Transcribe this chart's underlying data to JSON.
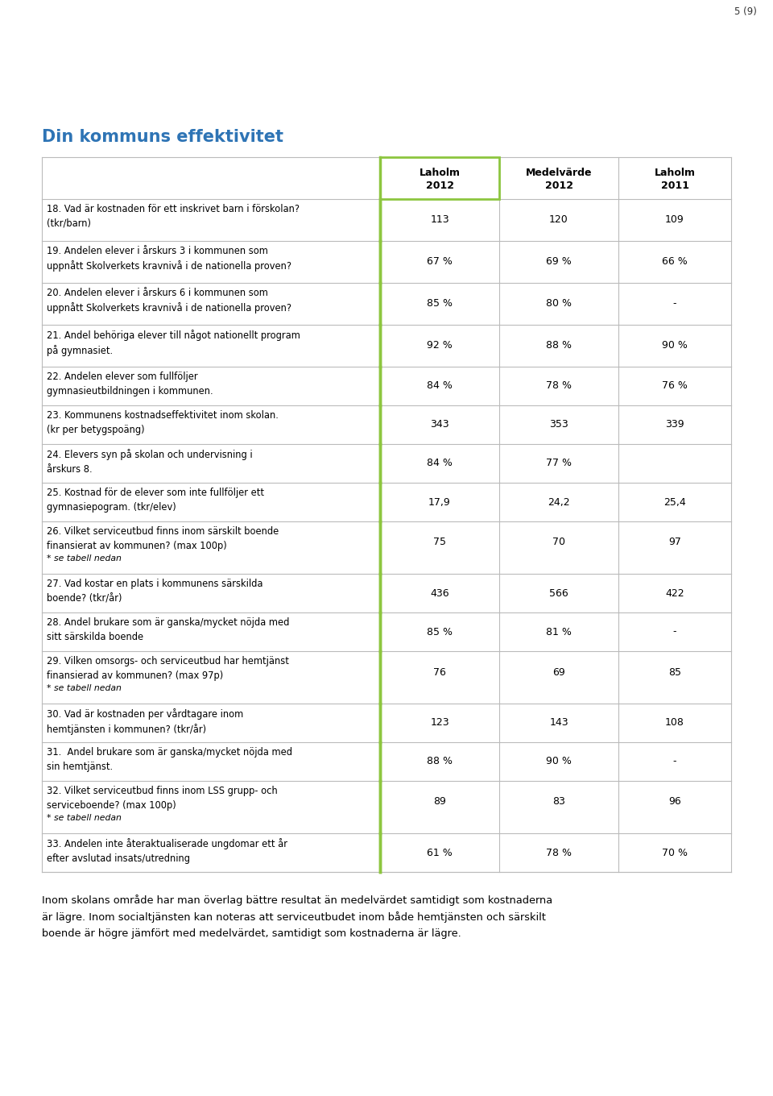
{
  "page_num": "5 (9)",
  "title": "Din kommuns effektivitet",
  "title_color": "#2E74B5",
  "col_headers": [
    [
      "Laholm",
      "2012"
    ],
    [
      "Medelvärde",
      "2012"
    ],
    [
      "Laholm",
      "2011"
    ]
  ],
  "green_color": "#8DC63F",
  "rows": [
    {
      "label": "18. Vad är kostnaden för ett inskrivet barn i förskolan?\n(tkr/barn)",
      "vals": [
        "113",
        "120",
        "109"
      ],
      "has_note": false
    },
    {
      "label": "19. Andelen elever i årskurs 3 i kommunen som\nuppnått Skolverkets kravnivå i de nationella proven?",
      "vals": [
        "67 %",
        "69 %",
        "66 %"
      ],
      "has_note": false
    },
    {
      "label": "20. Andelen elever i årskurs 6 i kommunen som\nuppnått Skolverkets kravnivå i de nationella proven?",
      "vals": [
        "85 %",
        "80 %",
        "-"
      ],
      "has_note": false
    },
    {
      "label": "21. Andel behöriga elever till något nationellt program\npå gymnasiet.",
      "vals": [
        "92 %",
        "88 %",
        "90 %"
      ],
      "has_note": false
    },
    {
      "label": "22. Andelen elever som fullföljer\ngymnasieutbildningen i kommunen.",
      "vals": [
        "84 %",
        "78 %",
        "76 %"
      ],
      "has_note": false
    },
    {
      "label": "23. Kommunens kostnadseffektivitet inom skolan.\n(kr per betygspoäng)",
      "vals": [
        "343",
        "353",
        "339"
      ],
      "has_note": false
    },
    {
      "label": "24. Elevers syn på skolan och undervisning i\nårskurs 8.",
      "vals": [
        "84 %",
        "77 %",
        ""
      ],
      "has_note": false
    },
    {
      "label": "25. Kostnad för de elever som inte fullföljer ett\ngymnasiepogram. (tkr/elev)",
      "vals": [
        "17,9",
        "24,2",
        "25,4"
      ],
      "has_note": false
    },
    {
      "label": "26. Vilket serviceutbud finns inom särskilt boende\nfinansierat av kommunen? (max 100p)",
      "vals": [
        "75",
        "70",
        "97"
      ],
      "has_note": true
    },
    {
      "label": "27. Vad kostar en plats i kommunens särskilda\nboende? (tkr/år)",
      "vals": [
        "436",
        "566",
        "422"
      ],
      "has_note": false
    },
    {
      "label": "28. Andel brukare som är ganska/mycket nöjda med\nsitt särskilda boende",
      "vals": [
        "85 %",
        "81 %",
        "-"
      ],
      "has_note": false
    },
    {
      "label": "29. Vilken omsorgs- och serviceutbud har hemtjänst\nfinansierad av kommunen? (max 97p)",
      "vals": [
        "76",
        "69",
        "85"
      ],
      "has_note": true
    },
    {
      "label": "30. Vad är kostnaden per vårdtagare inom\nhemtjänsten i kommunen? (tkr/år)",
      "vals": [
        "123",
        "143",
        "108"
      ],
      "has_note": false
    },
    {
      "label": "31.  Andel brukare som är ganska/mycket nöjda med\nsin hemtjänst.",
      "vals": [
        "88 %",
        "90 %",
        "-"
      ],
      "has_note": false
    },
    {
      "label": "32. Vilket serviceutbud finns inom LSS grupp- och\nserviceboende? (max 100p)",
      "vals": [
        "89",
        "83",
        "96"
      ],
      "has_note": true
    },
    {
      "label": "33. Andelen inte återaktualiserade ungdomar ett år\nefter avslutad insats/utredning",
      "vals": [
        "61 %",
        "78 %",
        "70 %"
      ],
      "has_note": false
    }
  ],
  "footer_text": "Inom skolans område har man överlag bättre resultat än medelvärdet samtidigt som kostnaderna\när lägre. Inom socialtjänsten kan noteras att serviceutbudet inom både hemtjänsten och särskilt\nboende är högre jämfört med medelvärdet, samtidigt som kostnaderna är lägre.",
  "bg_color": "#FFFFFF",
  "text_color": "#000000",
  "border_color": "#BBBBBB",
  "note_text": "* se tabell nedan"
}
